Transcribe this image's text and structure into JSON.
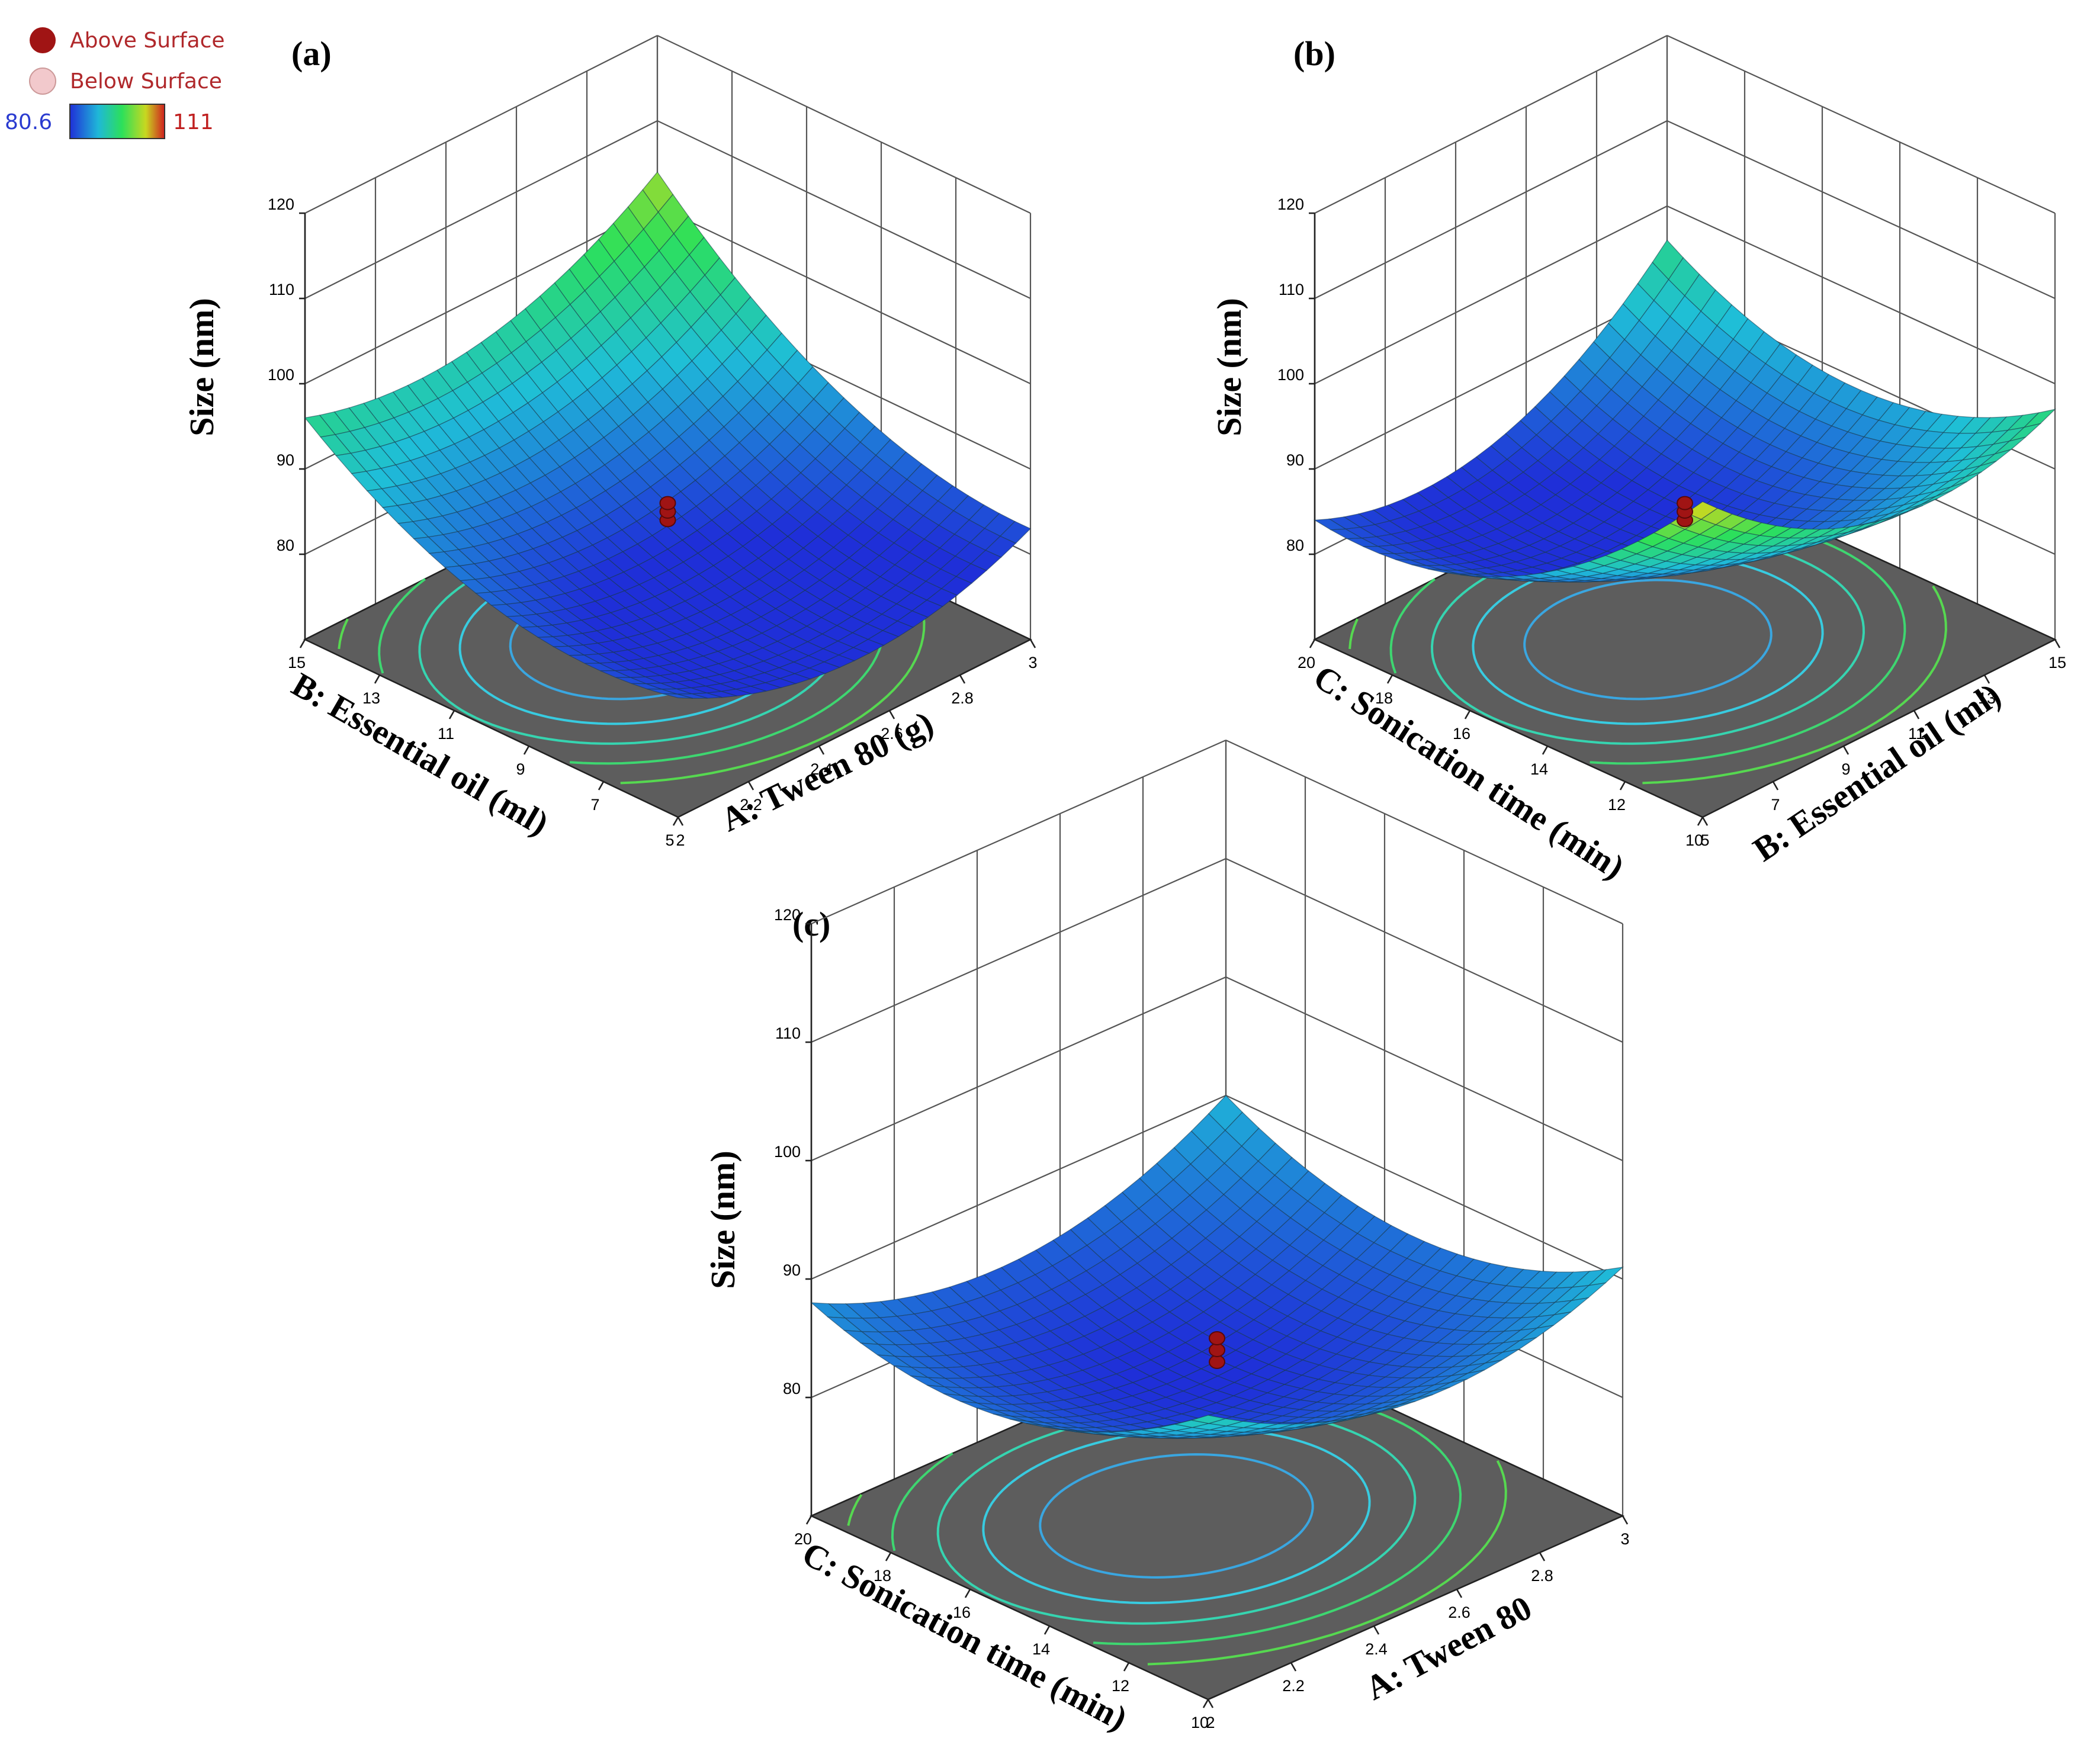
{
  "legend": {
    "above_label": "Above Surface",
    "below_label": "Below Surface",
    "above_color": "#a01414",
    "below_color": "#f2c9cc",
    "colorbar_min": "80.6",
    "colorbar_max": "111",
    "colorbar_colors": [
      "#1f2fd8",
      "#1fd0d8",
      "#2ce05a",
      "#d8d820",
      "#d01f1f"
    ]
  },
  "chart_data": [
    {
      "type": "surface",
      "panel": "(a)",
      "title": "",
      "zlabel": "Size (nm)",
      "zlim": [
        70,
        120
      ],
      "zticks": [
        "80",
        "90",
        "100",
        "110",
        "120"
      ],
      "x_axis": {
        "label": "A: Tween 80 (g)",
        "range": [
          2,
          3
        ],
        "ticks": [
          "2",
          "2.2",
          "2.4",
          "2.6",
          "2.8",
          "3"
        ]
      },
      "y_axis": {
        "label": "B: Essential oil (ml)",
        "range": [
          5,
          15
        ],
        "ticks": [
          "5",
          "7",
          "9",
          "11",
          "13",
          "15"
        ]
      },
      "surface_corners": {
        "x_min_y_min": 84,
        "x_max_y_min": 83,
        "x_min_y_max": 96,
        "x_max_y_max": 104
      },
      "surface_min": 80.6,
      "design_points": {
        "x": 2.5,
        "y": 10,
        "z": [
          84,
          85,
          86
        ]
      }
    },
    {
      "type": "surface",
      "panel": "(b)",
      "title": "",
      "zlabel": "Size (nm)",
      "zlim": [
        70,
        120
      ],
      "zticks": [
        "80",
        "90",
        "100",
        "110",
        "120"
      ],
      "x_axis": {
        "label": "B: Essential oil (ml)",
        "range": [
          5,
          15
        ],
        "ticks": [
          "5",
          "7",
          "9",
          "11",
          "13",
          "15"
        ]
      },
      "y_axis": {
        "label": "C: Sonication time (min)",
        "range": [
          10,
          20
        ],
        "ticks": [
          "10",
          "12",
          "14",
          "16",
          "18",
          "20"
        ]
      },
      "surface_corners": {
        "x_min_y_min": 107,
        "x_max_y_min": 97,
        "x_min_y_max": 84,
        "x_max_y_max": 96
      },
      "surface_min": 80.6,
      "design_points": {
        "x": 10,
        "y": 15,
        "z": [
          84,
          85,
          86
        ]
      }
    },
    {
      "type": "surface",
      "panel": "(c)",
      "title": "",
      "zlabel": "Size (nm)",
      "zlim": [
        70,
        120
      ],
      "zticks": [
        "80",
        "90",
        "100",
        "110",
        "120"
      ],
      "x_axis": {
        "label": "A: Tween 80",
        "range": [
          2,
          3
        ],
        "ticks": [
          "2",
          "2.2",
          "2.4",
          "2.6",
          "2.8",
          "3"
        ]
      },
      "y_axis": {
        "label": "C: Sonication time (min)",
        "range": [
          10,
          20
        ],
        "ticks": [
          "10",
          "12",
          "14",
          "16",
          "18",
          "20"
        ]
      },
      "surface_corners": {
        "x_min_y_min": 94,
        "x_max_y_min": 91,
        "x_min_y_max": 88,
        "x_max_y_max": 90
      },
      "surface_min": 80.6,
      "design_points": {
        "x": 2.5,
        "y": 15,
        "z": [
          83,
          84,
          85
        ]
      }
    }
  ]
}
